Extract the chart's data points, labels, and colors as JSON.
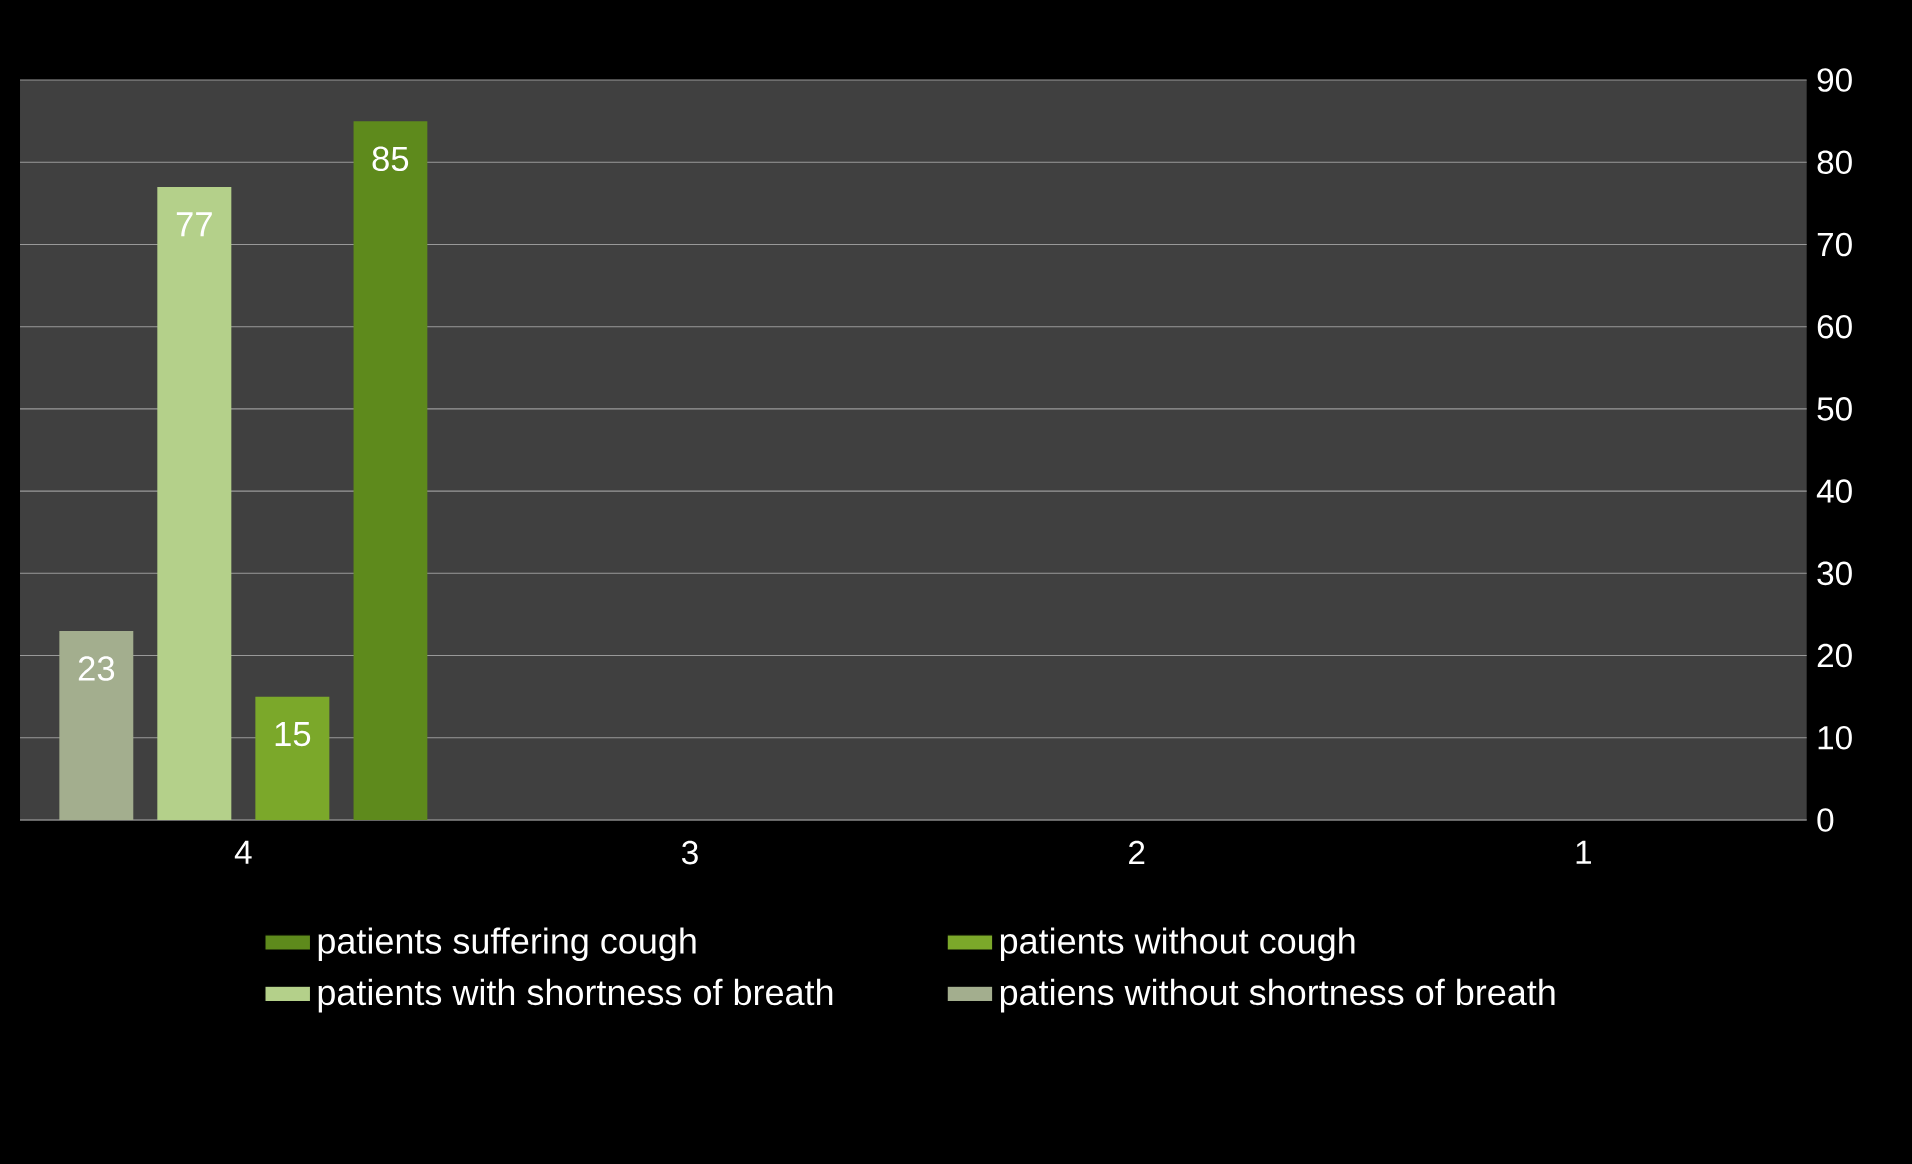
{
  "chart_data": {
    "type": "bar",
    "categories": [
      "4",
      "3",
      "2",
      "1"
    ],
    "series": [
      {
        "name": "patients suffering cough",
        "color": "#5e8a1c",
        "values": [
          85,
          null,
          null,
          null
        ]
      },
      {
        "name": "patients without cough",
        "color": "#7ba82a",
        "values": [
          15,
          null,
          null,
          null
        ]
      },
      {
        "name": "patients with shortness of breath",
        "color": "#b4d08a",
        "values": [
          77,
          null,
          null,
          null
        ]
      },
      {
        "name": "patiens without shortness of breath",
        "color": "#a3ae8e",
        "values": [
          23,
          null,
          null,
          null
        ]
      }
    ],
    "ylim": [
      0,
      90
    ],
    "yticks": [
      0,
      10,
      20,
      30,
      40,
      50,
      60,
      70,
      80,
      90
    ],
    "grid": "y",
    "legend": "bottom",
    "data_labels": true
  }
}
